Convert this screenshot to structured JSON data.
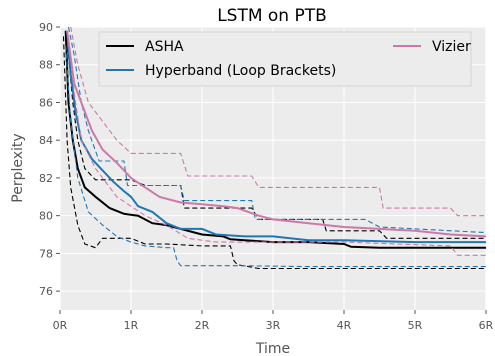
{
  "chart_data": {
    "type": "line",
    "title": "LSTM on PTB",
    "xlabel": "Time",
    "ylabel": "Perplexity",
    "xlim": [
      0,
      6
    ],
    "ylim": [
      75,
      90
    ],
    "xticks": [
      0,
      1,
      2,
      3,
      4,
      5,
      6
    ],
    "xtick_labels": [
      "0R",
      "1R",
      "2R",
      "3R",
      "4R",
      "5R",
      "6R"
    ],
    "yticks": [
      76,
      78,
      80,
      82,
      84,
      86,
      88,
      90
    ],
    "ytick_labels": [
      "76",
      "78",
      "80",
      "82",
      "84",
      "86",
      "88",
      "90"
    ],
    "grid": true,
    "legend_position": "top",
    "colors": {
      "ASHA": "#000000",
      "Hyperband (Loop Brackets)": "#1f77b4",
      "Vizier": "#cc79a7",
      "background": "#ececec",
      "grid": "#ffffff"
    },
    "series": [
      {
        "name": "ASHA",
        "color": "#000000",
        "mean": [
          [
            0.08,
            89.8
          ],
          [
            0.12,
            86
          ],
          [
            0.18,
            84
          ],
          [
            0.25,
            82.5
          ],
          [
            0.35,
            81.5
          ],
          [
            0.5,
            81
          ],
          [
            0.7,
            80.4
          ],
          [
            0.9,
            80.1
          ],
          [
            1.1,
            80.0
          ],
          [
            1.3,
            79.6
          ],
          [
            1.5,
            79.5
          ],
          [
            1.7,
            79.3
          ],
          [
            2.0,
            79.0
          ],
          [
            2.3,
            78.9
          ],
          [
            2.4,
            78.75
          ],
          [
            2.6,
            78.7
          ],
          [
            3.0,
            78.6
          ],
          [
            3.5,
            78.6
          ],
          [
            4.0,
            78.5
          ],
          [
            4.1,
            78.35
          ],
          [
            4.5,
            78.3
          ],
          [
            5.0,
            78.3
          ],
          [
            6.0,
            78.3
          ]
        ],
        "upper": [
          [
            0.08,
            89.8
          ],
          [
            0.12,
            88.5
          ],
          [
            0.18,
            86
          ],
          [
            0.25,
            84
          ],
          [
            0.35,
            82.5
          ],
          [
            0.5,
            81.9
          ],
          [
            1.0,
            81.9
          ],
          [
            1.2,
            81.6
          ],
          [
            1.7,
            81.6
          ],
          [
            1.75,
            80.4
          ],
          [
            2.7,
            80.4
          ],
          [
            2.8,
            79.8
          ],
          [
            3.7,
            79.8
          ],
          [
            3.75,
            79.2
          ],
          [
            4.5,
            79.2
          ],
          [
            4.6,
            78.8
          ],
          [
            6.0,
            78.8
          ]
        ],
        "lower": [
          [
            0.05,
            89.5
          ],
          [
            0.1,
            84
          ],
          [
            0.15,
            81.5
          ],
          [
            0.25,
            79.5
          ],
          [
            0.35,
            78.5
          ],
          [
            0.5,
            78.3
          ],
          [
            0.6,
            78.8
          ],
          [
            1.0,
            78.8
          ],
          [
            1.2,
            78.5
          ],
          [
            1.5,
            78.5
          ],
          [
            2.0,
            78.4
          ],
          [
            2.4,
            78.4
          ],
          [
            2.45,
            77.6
          ],
          [
            2.5,
            77.4
          ],
          [
            2.8,
            77.2
          ],
          [
            6.0,
            77.2
          ]
        ]
      },
      {
        "name": "Hyperband (Loop Brackets)",
        "color": "#1f77b4",
        "mean": [
          [
            0.1,
            89.8
          ],
          [
            0.15,
            87.5
          ],
          [
            0.22,
            85.5
          ],
          [
            0.3,
            84
          ],
          [
            0.45,
            83
          ],
          [
            0.6,
            82.4
          ],
          [
            0.75,
            81.8
          ],
          [
            0.9,
            81.3
          ],
          [
            1.0,
            81.0
          ],
          [
            1.1,
            80.5
          ],
          [
            1.3,
            80.2
          ],
          [
            1.5,
            79.6
          ],
          [
            1.7,
            79.3
          ],
          [
            2.0,
            79.3
          ],
          [
            2.2,
            79.0
          ],
          [
            2.6,
            78.9
          ],
          [
            3.0,
            78.9
          ],
          [
            3.5,
            78.7
          ],
          [
            4.0,
            78.7
          ],
          [
            5.0,
            78.6
          ],
          [
            6.0,
            78.6
          ]
        ],
        "upper": [
          [
            0.12,
            90
          ],
          [
            0.2,
            88.5
          ],
          [
            0.3,
            86
          ],
          [
            0.4,
            84.5
          ],
          [
            0.55,
            82.9
          ],
          [
            0.9,
            82.9
          ],
          [
            0.95,
            81.6
          ],
          [
            1.7,
            81.6
          ],
          [
            1.75,
            80.8
          ],
          [
            2.7,
            80.8
          ],
          [
            2.75,
            79.8
          ],
          [
            4.3,
            79.8
          ],
          [
            4.5,
            79.4
          ],
          [
            6.0,
            79.1
          ]
        ],
        "lower": [
          [
            0.08,
            89
          ],
          [
            0.15,
            85
          ],
          [
            0.25,
            82
          ],
          [
            0.4,
            80.2
          ],
          [
            0.6,
            79.5
          ],
          [
            0.8,
            78.9
          ],
          [
            1.0,
            78.6
          ],
          [
            1.2,
            78.4
          ],
          [
            1.5,
            78.3
          ],
          [
            1.6,
            78.3
          ],
          [
            1.65,
            77.6
          ],
          [
            1.7,
            77.35
          ],
          [
            2.5,
            77.35
          ],
          [
            3.5,
            77.3
          ],
          [
            6.0,
            77.3
          ]
        ]
      },
      {
        "name": "Vizier",
        "color": "#cc79a7",
        "mean": [
          [
            0.1,
            89.8
          ],
          [
            0.2,
            87
          ],
          [
            0.3,
            86
          ],
          [
            0.45,
            84.5
          ],
          [
            0.6,
            83.5
          ],
          [
            0.8,
            82.8
          ],
          [
            1.0,
            82.0
          ],
          [
            1.2,
            81.5
          ],
          [
            1.4,
            81.0
          ],
          [
            1.7,
            80.7
          ],
          [
            2.0,
            80.6
          ],
          [
            2.3,
            80.5
          ],
          [
            2.5,
            80.4
          ],
          [
            2.8,
            80.0
          ],
          [
            3.0,
            79.8
          ],
          [
            3.5,
            79.6
          ],
          [
            4.0,
            79.4
          ],
          [
            4.5,
            79.3
          ],
          [
            5.0,
            79.2
          ],
          [
            5.5,
            79.0
          ],
          [
            6.0,
            78.9
          ]
        ],
        "upper": [
          [
            0.15,
            90
          ],
          [
            0.25,
            88
          ],
          [
            0.4,
            86
          ],
          [
            0.6,
            85
          ],
          [
            0.8,
            84
          ],
          [
            1.0,
            83.3
          ],
          [
            1.7,
            83.3
          ],
          [
            1.8,
            82.1
          ],
          [
            2.7,
            82.1
          ],
          [
            2.8,
            81.5
          ],
          [
            4.5,
            81.5
          ],
          [
            4.55,
            80.4
          ],
          [
            5.5,
            80.4
          ],
          [
            5.6,
            80.0
          ],
          [
            6.0,
            80.0
          ]
        ],
        "lower": [
          [
            0.12,
            89.5
          ],
          [
            0.2,
            86.5
          ],
          [
            0.3,
            84
          ],
          [
            0.5,
            82.5
          ],
          [
            0.8,
            81
          ],
          [
            1.2,
            80
          ],
          [
            1.5,
            79.5
          ],
          [
            1.8,
            78.8
          ],
          [
            2.2,
            78.6
          ],
          [
            3.0,
            78.6
          ],
          [
            4.0,
            78.6
          ],
          [
            5.5,
            78.4
          ],
          [
            5.6,
            77.9
          ],
          [
            6.0,
            77.9
          ]
        ]
      }
    ]
  }
}
